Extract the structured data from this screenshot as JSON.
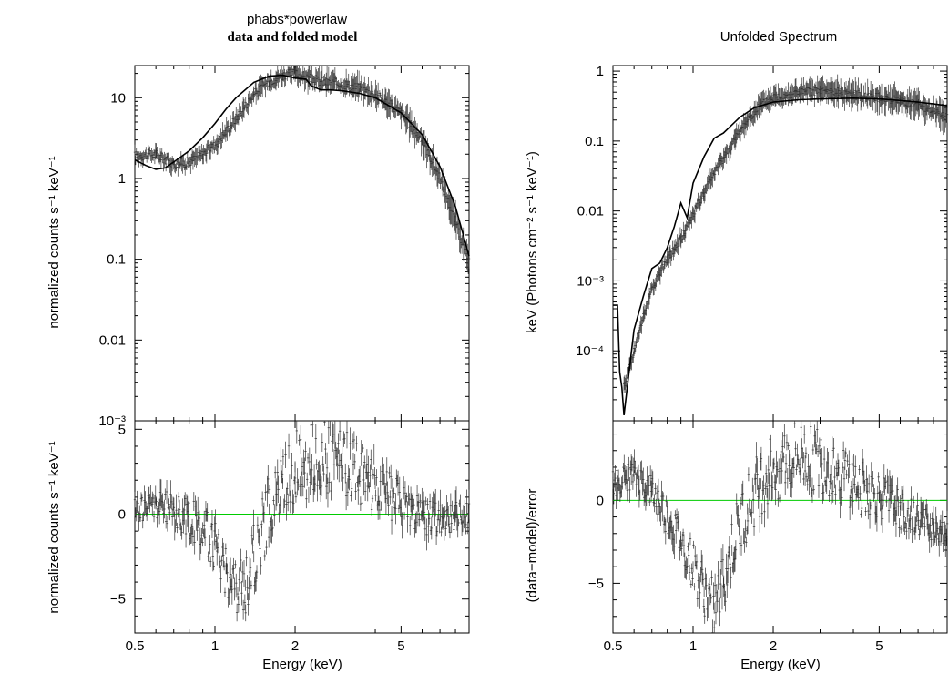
{
  "left": {
    "title": "phabs*powerlaw",
    "subtitle": "data and folded model",
    "top_ylabel": "normalized counts s⁻¹ keV⁻¹",
    "bottom_ylabel": "normalized counts s⁻¹ keV⁻¹",
    "xlabel": "Energy (keV)"
  },
  "right": {
    "title": "Unfolded Spectrum",
    "top_ylabel": "keV (Photons cm⁻² s⁻¹ keV⁻¹)",
    "bottom_ylabel": "(data−model)/error",
    "xlabel": "Energy (keV)"
  },
  "colors": {
    "data": "#333333",
    "model": "#000000",
    "zero_line": "#00cc00",
    "frame": "#000000"
  },
  "chart_data": [
    {
      "type": "scatter",
      "panel": "left-top",
      "title": "phabs*powerlaw",
      "subtitle": "data and folded model",
      "xlabel": "",
      "ylabel": "normalized counts s⁻¹ keV⁻¹",
      "xscale": "log",
      "yscale": "log",
      "xlim": [
        0.5,
        9.0
      ],
      "ylim": [
        0.001,
        25
      ],
      "xticks": [
        0.5,
        1,
        2,
        5
      ],
      "xtick_labels": [
        "",
        "",
        "",
        ""
      ],
      "yticks": [
        0.001,
        0.01,
        0.1,
        1,
        10
      ],
      "ytick_labels": [
        "10⁻³",
        "0.01",
        "0.1",
        "1",
        "10"
      ],
      "series": [
        {
          "kind": "data",
          "x": [
            0.5,
            0.6,
            0.7,
            0.8,
            0.9,
            1.0,
            1.2,
            1.4,
            1.6,
            1.8,
            2.0,
            2.3,
            2.6,
            3.0,
            3.5,
            4.0,
            5.0,
            6.0,
            7.0,
            8.0,
            9.0
          ],
          "y": [
            1.9,
            2.0,
            1.5,
            1.6,
            2.0,
            2.6,
            5.5,
            11.0,
            16.0,
            19.0,
            20.0,
            17.0,
            15.5,
            15.0,
            13.0,
            11.0,
            6.5,
            3.0,
            1.0,
            0.3,
            0.09
          ]
        },
        {
          "kind": "model",
          "x": [
            0.5,
            0.55,
            0.6,
            0.65,
            0.7,
            0.8,
            0.9,
            1.0,
            1.1,
            1.2,
            1.4,
            1.6,
            1.8,
            2.0,
            2.2,
            2.3,
            2.5,
            2.7,
            3.0,
            3.5,
            4.0,
            5.0,
            6.0,
            7.0,
            8.0,
            9.0
          ],
          "y": [
            1.7,
            1.45,
            1.3,
            1.35,
            1.6,
            2.2,
            3.2,
            4.8,
            7.2,
            10.0,
            15.5,
            18.5,
            19.0,
            17.5,
            17.0,
            14.0,
            12.5,
            12.5,
            12.2,
            11.3,
            10.0,
            6.5,
            3.5,
            1.4,
            0.45,
            0.11
          ]
        }
      ]
    },
    {
      "type": "scatter",
      "panel": "left-bottom",
      "xlabel": "Energy (keV)",
      "ylabel": "normalized counts s⁻¹ keV⁻¹",
      "xscale": "log",
      "xlim": [
        0.5,
        9.0
      ],
      "ylim": [
        -7,
        5.5
      ],
      "xticks": [
        0.5,
        1,
        2,
        5
      ],
      "xtick_labels": [
        "0.5",
        "1",
        "2",
        "5"
      ],
      "yticks": [
        -5,
        0,
        5
      ],
      "ytick_labels": [
        "−5",
        "0",
        "5"
      ],
      "zero_line": 0,
      "series": [
        {
          "kind": "residual",
          "x": [
            0.5,
            0.6,
            0.7,
            0.8,
            0.9,
            1.0,
            1.1,
            1.2,
            1.3,
            1.4,
            1.5,
            1.6,
            1.8,
            2.0,
            2.3,
            2.6,
            3.0,
            3.5,
            4.0,
            5.0,
            6.0,
            7.0,
            8.0,
            9.0
          ],
          "y": [
            0.2,
            0.6,
            0.2,
            -0.3,
            -0.8,
            -1.8,
            -3.2,
            -4.6,
            -4.2,
            -2.5,
            -1.0,
            0.3,
            1.8,
            2.8,
            3.2,
            3.3,
            3.0,
            2.5,
            1.8,
            0.6,
            -0.1,
            -0.3,
            -0.15,
            0.0
          ]
        }
      ]
    },
    {
      "type": "scatter",
      "panel": "right-top",
      "title": "Unfolded Spectrum",
      "xlabel": "",
      "ylabel": "keV (Photons cm⁻² s⁻¹ keV⁻¹)",
      "xscale": "log",
      "yscale": "log",
      "xlim": [
        0.5,
        9.0
      ],
      "ylim": [
        1e-05,
        1.2
      ],
      "xticks": [
        0.5,
        1,
        2,
        5
      ],
      "xtick_labels": [
        "",
        "",
        "",
        ""
      ],
      "yticks": [
        0.0001,
        0.001,
        0.01,
        0.1,
        1
      ],
      "ytick_labels": [
        "10⁻⁴",
        "10⁻³",
        "0.01",
        "0.1",
        "1"
      ],
      "series": [
        {
          "kind": "data",
          "x": [
            0.55,
            0.6,
            0.65,
            0.7,
            0.8,
            0.9,
            1.0,
            1.1,
            1.2,
            1.4,
            1.6,
            1.8,
            2.0,
            2.5,
            3.0,
            3.5,
            4.0,
            5.0,
            6.0,
            7.0,
            8.0,
            9.0
          ],
          "y": [
            3e-05,
            0.0001,
            0.0003,
            0.0008,
            0.002,
            0.004,
            0.009,
            0.018,
            0.035,
            0.09,
            0.2,
            0.33,
            0.42,
            0.5,
            0.52,
            0.5,
            0.47,
            0.42,
            0.38,
            0.33,
            0.27,
            0.22
          ]
        },
        {
          "kind": "model",
          "x": [
            0.5,
            0.52,
            0.53,
            0.54,
            0.55,
            0.6,
            0.65,
            0.7,
            0.75,
            0.8,
            0.85,
            0.9,
            0.95,
            1.0,
            1.1,
            1.2,
            1.3,
            1.5,
            1.7,
            2.0,
            2.5,
            3.0,
            4.0,
            5.0,
            6.0,
            7.0,
            8.0,
            9.0
          ],
          "y": [
            0.00045,
            0.00045,
            5e-05,
            3e-05,
            1.2e-05,
            0.0002,
            0.0006,
            0.0015,
            0.0018,
            0.003,
            0.006,
            0.013,
            0.008,
            0.025,
            0.06,
            0.11,
            0.13,
            0.22,
            0.3,
            0.36,
            0.39,
            0.4,
            0.41,
            0.4,
            0.38,
            0.36,
            0.34,
            0.32
          ]
        }
      ]
    },
    {
      "type": "scatter",
      "panel": "right-bottom",
      "xlabel": "Energy (keV)",
      "ylabel": "(data−model)/error",
      "xscale": "log",
      "xlim": [
        0.5,
        9.0
      ],
      "ylim": [
        -8,
        4.8
      ],
      "xticks": [
        0.5,
        1,
        2,
        5
      ],
      "xtick_labels": [
        "0.5",
        "1",
        "2",
        "5"
      ],
      "yticks": [
        -5,
        0
      ],
      "ytick_labels": [
        "−5",
        "0"
      ],
      "zero_line": 0,
      "series": [
        {
          "kind": "residual",
          "x": [
            0.5,
            0.6,
            0.7,
            0.8,
            0.9,
            1.0,
            1.1,
            1.2,
            1.3,
            1.4,
            1.5,
            1.6,
            1.8,
            2.0,
            2.3,
            2.6,
            3.0,
            3.5,
            4.0,
            5.0,
            6.0,
            7.0,
            8.0,
            9.0
          ],
          "y": [
            1.0,
            1.5,
            0.5,
            -1.0,
            -2.5,
            -4.0,
            -5.5,
            -6.5,
            -5.0,
            -3.0,
            -1.5,
            -0.5,
            1.0,
            2.0,
            2.5,
            2.6,
            2.3,
            1.8,
            1.0,
            0.2,
            -0.6,
            -1.2,
            -1.6,
            -1.8
          ]
        }
      ]
    }
  ]
}
